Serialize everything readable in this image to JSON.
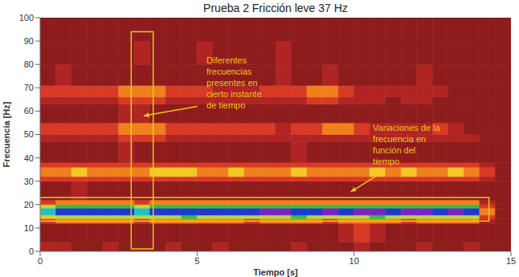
{
  "chart_data": {
    "type": "heatmap",
    "title": "Prueba 2 Fricción leve 37 Hz",
    "x_label": "Tiempo [s]",
    "y_label": "Frecuencia [Hz]",
    "xlim": [
      0,
      15
    ],
    "xticks": [
      0,
      5,
      10,
      15
    ],
    "ylim": [
      0,
      100
    ],
    "yticks": [
      0,
      10,
      20,
      30,
      40,
      50,
      60,
      70,
      80,
      90,
      100
    ],
    "x_edges": [
      0,
      0.5,
      1,
      1.5,
      2,
      2.5,
      3,
      3.5,
      4,
      4.5,
      5,
      5.5,
      6,
      6.5,
      7,
      7.5,
      8,
      8.5,
      9,
      9.5,
      10,
      10.5,
      11,
      11.5,
      12,
      12.5,
      13,
      13.5,
      14,
      14.5,
      15
    ],
    "y_edges": [
      0,
      4,
      12,
      14,
      15.5,
      18.5,
      20,
      22,
      30,
      32,
      36,
      38,
      47,
      50,
      55,
      63,
      66,
      71,
      80,
      90,
      100
    ],
    "zlim": [
      0,
      10
    ],
    "z": [
      [
        2,
        2,
        1,
        1,
        2,
        1,
        1,
        1,
        2,
        1,
        1,
        2,
        1,
        1,
        1,
        1,
        2,
        1,
        1,
        1,
        2,
        1,
        1,
        1,
        2,
        1,
        1,
        2,
        1,
        1
      ],
      [
        1,
        1,
        1,
        1,
        1,
        1,
        1,
        1,
        1,
        1,
        1,
        1,
        1,
        1,
        1,
        1,
        1,
        1,
        1,
        2,
        3,
        2,
        1,
        1,
        1,
        1,
        1,
        1,
        1,
        1
      ],
      [
        3,
        4,
        4,
        4,
        4,
        4,
        3,
        4,
        4,
        4,
        4,
        4,
        4,
        3,
        4,
        4,
        4,
        4,
        3,
        4,
        4,
        4,
        4,
        3,
        4,
        4,
        4,
        4,
        2,
        1
      ],
      [
        5,
        6,
        6,
        6,
        6,
        6,
        6,
        6,
        6,
        7,
        6,
        6,
        6,
        6,
        6,
        6,
        7,
        6,
        6,
        6,
        6,
        7,
        6,
        6,
        6,
        6,
        6,
        6,
        3,
        1
      ],
      [
        8,
        9,
        9,
        9,
        9,
        9,
        8,
        9,
        9,
        9,
        9,
        9,
        9,
        9,
        10,
        10,
        9,
        9,
        10,
        9,
        10,
        10,
        9,
        10,
        10,
        9,
        10,
        9,
        4,
        1
      ],
      [
        6,
        7,
        7,
        7,
        7,
        7,
        6,
        7,
        7,
        7,
        7,
        7,
        7,
        7,
        7,
        7,
        7,
        7,
        7,
        7,
        7,
        7,
        7,
        7,
        7,
        7,
        7,
        7,
        3,
        1
      ],
      [
        3,
        4,
        4,
        4,
        4,
        4,
        3,
        4,
        4,
        4,
        4,
        4,
        4,
        4,
        4,
        4,
        4,
        4,
        4,
        4,
        4,
        4,
        4,
        4,
        4,
        4,
        4,
        4,
        2,
        1
      ],
      [
        1,
        1,
        2,
        1,
        1,
        1,
        1,
        1,
        1,
        1,
        1,
        1,
        1,
        1,
        1,
        1,
        1,
        1,
        1,
        1,
        1,
        1,
        1,
        1,
        1,
        1,
        1,
        1,
        1,
        1
      ],
      [
        3,
        3,
        3,
        3,
        3,
        3,
        3,
        3,
        3,
        3,
        3,
        3,
        3,
        3,
        3,
        3,
        3,
        3,
        3,
        3,
        3,
        3,
        3,
        3,
        3,
        3,
        3,
        3,
        2,
        1
      ],
      [
        4,
        4,
        5,
        4,
        4,
        4,
        4,
        5,
        5,
        5,
        4,
        4,
        5,
        4,
        4,
        4,
        5,
        4,
        4,
        4,
        4,
        5,
        4,
        5,
        4,
        4,
        5,
        4,
        3,
        1
      ],
      [
        3,
        3,
        3,
        3,
        3,
        3,
        3,
        3,
        3,
        3,
        3,
        3,
        3,
        3,
        3,
        3,
        3,
        3,
        3,
        3,
        3,
        3,
        3,
        3,
        3,
        3,
        3,
        3,
        2,
        1
      ],
      [
        1,
        1,
        1,
        1,
        1,
        2,
        1,
        1,
        1,
        1,
        1,
        1,
        1,
        1,
        1,
        1,
        2,
        1,
        1,
        1,
        1,
        1,
        1,
        1,
        1,
        1,
        1,
        1,
        1,
        1
      ],
      [
        2,
        2,
        2,
        2,
        2,
        3,
        3,
        3,
        2,
        2,
        2,
        2,
        2,
        2,
        2,
        2,
        2,
        2,
        2,
        2,
        2,
        2,
        2,
        2,
        2,
        2,
        2,
        2,
        1,
        1
      ],
      [
        3,
        3,
        3,
        3,
        3,
        4,
        4,
        4,
        3,
        3,
        3,
        3,
        3,
        3,
        3,
        2,
        3,
        3,
        4,
        4,
        3,
        2,
        2,
        2,
        2,
        3,
        2,
        1,
        1,
        1
      ],
      [
        1,
        1,
        1,
        1,
        1,
        2,
        2,
        1,
        1,
        1,
        1,
        1,
        1,
        1,
        1,
        1,
        1,
        1,
        1,
        1,
        1,
        1,
        1,
        1,
        1,
        1,
        1,
        1,
        1,
        1
      ],
      [
        2,
        2,
        2,
        2,
        2,
        3,
        3,
        3,
        2,
        2,
        2,
        2,
        2,
        2,
        2,
        2,
        2,
        3,
        3,
        2,
        2,
        2,
        1,
        2,
        2,
        1,
        1,
        1,
        1,
        1
      ],
      [
        3,
        3,
        3,
        3,
        3,
        4,
        4,
        4,
        3,
        3,
        3,
        2,
        2,
        2,
        3,
        3,
        3,
        4,
        4,
        3,
        2,
        2,
        2,
        2,
        2,
        2,
        1,
        1,
        1,
        1
      ],
      [
        1,
        2,
        1,
        1,
        1,
        1,
        1,
        1,
        1,
        1,
        1,
        1,
        1,
        1,
        1,
        2,
        1,
        1,
        2,
        1,
        1,
        1,
        1,
        1,
        2,
        1,
        1,
        1,
        1,
        1
      ],
      [
        1,
        1,
        1,
        1,
        1,
        1,
        2,
        1,
        1,
        1,
        2,
        1,
        1,
        1,
        1,
        2,
        1,
        1,
        1,
        1,
        1,
        1,
        1,
        1,
        1,
        1,
        1,
        1,
        1,
        1
      ],
      [
        1,
        1,
        1,
        1,
        1,
        1,
        1,
        1,
        1,
        1,
        1,
        1,
        1,
        1,
        1,
        1,
        1,
        1,
        1,
        1,
        1,
        1,
        1,
        1,
        1,
        1,
        1,
        1,
        1,
        1
      ]
    ],
    "annotations": [
      {
        "text": [
          "Diferentes",
          "frecuencias",
          "presentes en",
          "cierto instante",
          "de tiempo"
        ],
        "at": [
          5.3,
          84
        ],
        "arrow": [
          [
            5.0,
            62
          ],
          [
            3.3,
            58
          ]
        ],
        "box": {
          "x": [
            2.9,
            3.6
          ],
          "y": [
            1,
            94
          ]
        }
      },
      {
        "text": [
          "Variaciones de la",
          "frecuencia en",
          "función del",
          "tiempo"
        ],
        "at": [
          10.6,
          55
        ],
        "arrow": [
          [
            10.8,
            33
          ],
          [
            9.9,
            25.5
          ]
        ],
        "box": {
          "x": [
            0,
            14.3
          ],
          "y": [
            13,
            23
          ]
        }
      }
    ]
  }
}
